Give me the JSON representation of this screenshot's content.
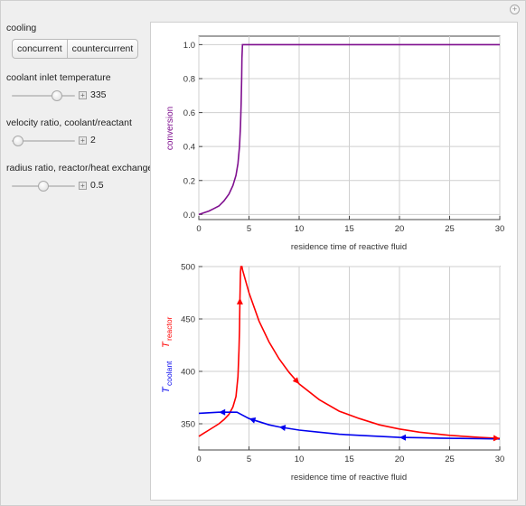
{
  "controls": {
    "cooling": {
      "label": "cooling",
      "options": [
        "concurrent",
        "countercurrent"
      ]
    },
    "coolant_temp": {
      "label": "coolant inlet temperature",
      "value": "335",
      "fraction": 0.72
    },
    "velocity_ratio": {
      "label": "velocity ratio, coolant/reactant",
      "value": "2",
      "fraction": 0.1
    },
    "radius_ratio": {
      "label": "radius ratio, reactor/heat exchanger",
      "value": "0.5",
      "fraction": 0.5
    }
  },
  "colors": {
    "conversion": "#7f0f8f",
    "reactor": "#ff0000",
    "coolant": "#0000ee"
  },
  "chart_data": [
    {
      "type": "line",
      "xlabel": "residence time of reactive fluid",
      "ylabel": "conversion",
      "xlim": [
        0,
        30
      ],
      "ylim": [
        -0.03,
        1.05
      ],
      "xticks": [
        "0",
        "5",
        "10",
        "15",
        "20",
        "25",
        "30"
      ],
      "yticks": [
        "0.0",
        "0.2",
        "0.4",
        "0.6",
        "0.8",
        "1.0"
      ],
      "grid": true,
      "series": [
        {
          "x": [
            0,
            0.5,
            1,
            1.5,
            2,
            2.5,
            3,
            3.4,
            3.7,
            3.9,
            4.05,
            4.15,
            4.22,
            4.27,
            4.3,
            4.35,
            4.45,
            30
          ],
          "y": [
            0,
            0.01,
            0.02,
            0.035,
            0.05,
            0.08,
            0.12,
            0.17,
            0.23,
            0.3,
            0.4,
            0.52,
            0.65,
            0.8,
            0.92,
            1.0,
            1.0,
            1.0
          ]
        }
      ]
    },
    {
      "type": "line",
      "xlabel": "residence time of reactive fluid",
      "ylabel_reactor": "T",
      "ylabel_reactor_sub": "reactor",
      "ylabel_coolant": "T",
      "ylabel_coolant_sub": "coolant",
      "xlim": [
        0,
        30
      ],
      "ylim": [
        325,
        500
      ],
      "xticks": [
        "0",
        "5",
        "10",
        "15",
        "20",
        "25",
        "30"
      ],
      "yticks": [
        "350",
        "400",
        "450",
        "500"
      ],
      "grid": true,
      "series": [
        {
          "x": [
            0,
            0.5,
            1,
            1.5,
            2,
            2.5,
            3,
            3.4,
            3.7,
            3.9,
            4.0,
            4.05,
            4.1,
            4.15,
            4.2,
            4.25,
            4.3,
            4.35,
            5,
            6,
            7,
            8,
            9,
            10,
            12,
            14,
            16,
            18,
            20,
            22,
            25,
            28,
            30
          ],
          "y": [
            338,
            341,
            344,
            347,
            350,
            354,
            359,
            366,
            376,
            395,
            420,
            440,
            470,
            495,
            500,
            500,
            500,
            497,
            475,
            448,
            428,
            412,
            399,
            388,
            373,
            362,
            355,
            349,
            345,
            342,
            339,
            337,
            336
          ]
        },
        {
          "x": [
            0,
            2,
            3,
            3.8,
            4.4,
            5,
            6,
            7,
            8,
            10,
            12,
            14,
            16,
            18,
            20,
            22,
            24,
            26,
            28,
            30
          ],
          "y": [
            360,
            361,
            361,
            361,
            358,
            355,
            352,
            349,
            347,
            344,
            342,
            340,
            339,
            338,
            337,
            336.7,
            336.3,
            336,
            335.8,
            335.5
          ]
        }
      ]
    }
  ]
}
